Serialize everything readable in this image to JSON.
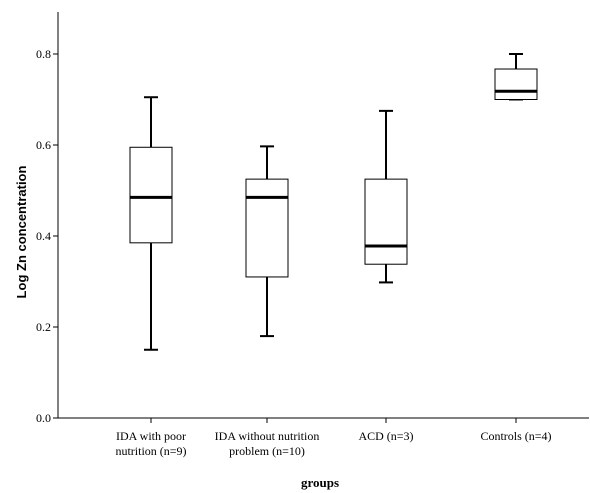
{
  "chart_data": {
    "type": "boxplot",
    "title": "",
    "xlabel": "groups",
    "ylabel": "Log Zn concentration",
    "ylim": [
      0.0,
      0.88
    ],
    "yticks": [
      "0.0",
      "0.2",
      "0.4",
      "0.6",
      "0.8"
    ],
    "grid": false,
    "categories": [
      [
        "IDA with poor",
        "nutrition (n=9)"
      ],
      [
        "IDA without nutrition",
        "problem (n=10)"
      ],
      [
        "ACD (n=3)"
      ],
      [
        "Controls (n=4)"
      ]
    ],
    "boxes": [
      {
        "whisker_low": 0.15,
        "q1": 0.385,
        "median": 0.485,
        "q3": 0.595,
        "whisker_high": 0.705
      },
      {
        "whisker_low": 0.18,
        "q1": 0.31,
        "median": 0.485,
        "q3": 0.525,
        "whisker_high": 0.597
      },
      {
        "whisker_low": 0.298,
        "q1": 0.338,
        "median": 0.378,
        "q3": 0.525,
        "whisker_high": 0.675
      },
      {
        "whisker_low": 0.7,
        "q1": 0.7,
        "median": 0.718,
        "q3": 0.767,
        "whisker_high": 0.8
      }
    ]
  }
}
